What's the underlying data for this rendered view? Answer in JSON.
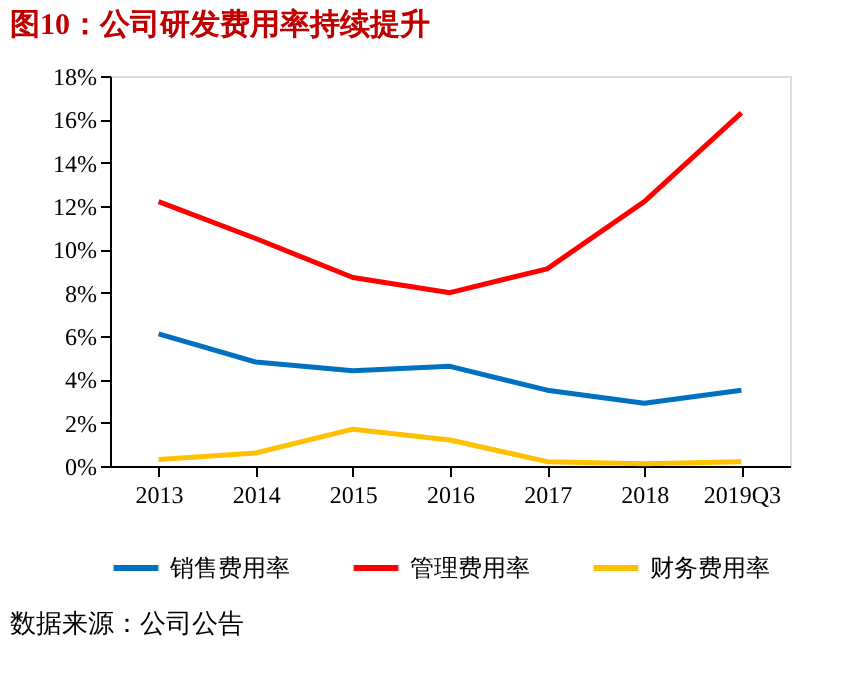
{
  "chart_data": {
    "type": "line",
    "title": "图10：公司研发费用率持续提升",
    "categories": [
      "2013",
      "2014",
      "2015",
      "2016",
      "2017",
      "2018",
      "2019Q3"
    ],
    "series": [
      {
        "name": "销售费用率",
        "color": "#0070c0",
        "values": [
          6.1,
          4.8,
          4.4,
          4.6,
          3.5,
          2.9,
          3.5
        ]
      },
      {
        "name": "管理费用率",
        "color": "#ff0000",
        "values": [
          12.2,
          10.5,
          8.7,
          8.0,
          9.1,
          12.2,
          16.3
        ]
      },
      {
        "name": "财务费用率",
        "color": "#ffc000",
        "values": [
          0.3,
          0.6,
          1.7,
          1.2,
          0.2,
          0.1,
          0.2
        ]
      }
    ],
    "ylim": [
      0,
      18
    ],
    "yticks": [
      {
        "value": 0,
        "label": "0%"
      },
      {
        "value": 2,
        "label": "2%"
      },
      {
        "value": 4,
        "label": "4%"
      },
      {
        "value": 6,
        "label": "6%"
      },
      {
        "value": 8,
        "label": "8%"
      },
      {
        "value": 10,
        "label": "10%"
      },
      {
        "value": 12,
        "label": "12%"
      },
      {
        "value": 14,
        "label": "14%"
      },
      {
        "value": 16,
        "label": "16%"
      },
      {
        "value": 18,
        "label": "18%"
      }
    ],
    "grid": false,
    "legend": "bottom",
    "marker": "none",
    "line_style": "solid",
    "annotations": [
      "数据来源：公司公告"
    ]
  }
}
